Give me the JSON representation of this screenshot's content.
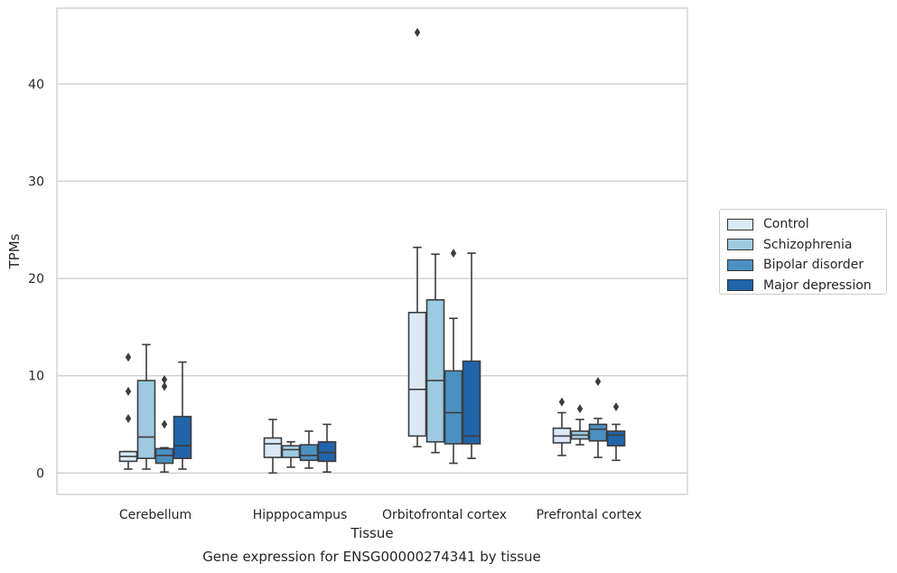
{
  "chart_data": {
    "type": "box",
    "title": "",
    "caption": "Gene expression for ENSG00000274341 by tissue",
    "xlabel": "Tissue",
    "ylabel": "TPMs",
    "ylim": [
      -2.2,
      47.8
    ],
    "yticks": [
      0,
      10,
      20,
      30,
      40
    ],
    "grid": true,
    "legend_position": "right",
    "categories": [
      "Cerebellum",
      "Hipppocampus",
      "Orbitofrontal cortex",
      "Prefrontal cortex"
    ],
    "series": [
      {
        "name": "Control",
        "color": "#dbe9f6",
        "boxes": [
          {
            "whislo": 0.4,
            "q1": 1.2,
            "med": 1.7,
            "q3": 2.2,
            "whishi": 2.2,
            "fliers": [
              5.6,
              8.4,
              11.9
            ]
          },
          {
            "whislo": 0.0,
            "q1": 1.6,
            "med": 3.0,
            "q3": 3.6,
            "whishi": 5.5,
            "fliers": []
          },
          {
            "whislo": 2.7,
            "q1": 3.8,
            "med": 8.6,
            "q3": 16.5,
            "whishi": 23.2,
            "fliers": [
              45.3
            ]
          },
          {
            "whislo": 1.8,
            "q1": 3.1,
            "med": 3.8,
            "q3": 4.6,
            "whishi": 6.2,
            "fliers": [
              7.3
            ]
          }
        ]
      },
      {
        "name": "Schizophrenia",
        "color": "#9ecae1",
        "boxes": [
          {
            "whislo": 0.4,
            "q1": 1.5,
            "med": 3.7,
            "q3": 9.5,
            "whishi": 13.2,
            "fliers": []
          },
          {
            "whislo": 0.6,
            "q1": 1.6,
            "med": 2.4,
            "q3": 2.8,
            "whishi": 3.2,
            "fliers": []
          },
          {
            "whislo": 2.1,
            "q1": 3.2,
            "med": 9.5,
            "q3": 17.8,
            "whishi": 22.5,
            "fliers": []
          },
          {
            "whislo": 2.9,
            "q1": 3.5,
            "med": 3.9,
            "q3": 4.3,
            "whishi": 5.5,
            "fliers": [
              6.6
            ]
          }
        ]
      },
      {
        "name": "Bipolar disorder",
        "color": "#4a90c2",
        "boxes": [
          {
            "whislo": 0.1,
            "q1": 1.0,
            "med": 1.8,
            "q3": 2.5,
            "whishi": 2.6,
            "fliers": [
              5.0,
              8.9,
              9.6
            ]
          },
          {
            "whislo": 0.5,
            "q1": 1.3,
            "med": 1.8,
            "q3": 2.9,
            "whishi": 4.3,
            "fliers": []
          },
          {
            "whislo": 1.0,
            "q1": 3.0,
            "med": 6.2,
            "q3": 10.5,
            "whishi": 15.9,
            "fliers": [
              22.6
            ]
          },
          {
            "whislo": 1.6,
            "q1": 3.3,
            "med": 4.5,
            "q3": 5.0,
            "whishi": 5.6,
            "fliers": [
              9.4
            ]
          }
        ]
      },
      {
        "name": "Major depression",
        "color": "#2064aa",
        "boxes": [
          {
            "whislo": 0.4,
            "q1": 1.5,
            "med": 2.8,
            "q3": 5.8,
            "whishi": 11.4,
            "fliers": []
          },
          {
            "whislo": 0.1,
            "q1": 1.2,
            "med": 2.1,
            "q3": 3.2,
            "whishi": 5.0,
            "fliers": []
          },
          {
            "whislo": 1.5,
            "q1": 3.0,
            "med": 3.8,
            "q3": 11.5,
            "whishi": 22.6,
            "fliers": []
          },
          {
            "whislo": 1.3,
            "q1": 2.8,
            "med": 3.9,
            "q3": 4.3,
            "whishi": 5.0,
            "fliers": [
              6.8
            ]
          }
        ]
      }
    ]
  }
}
